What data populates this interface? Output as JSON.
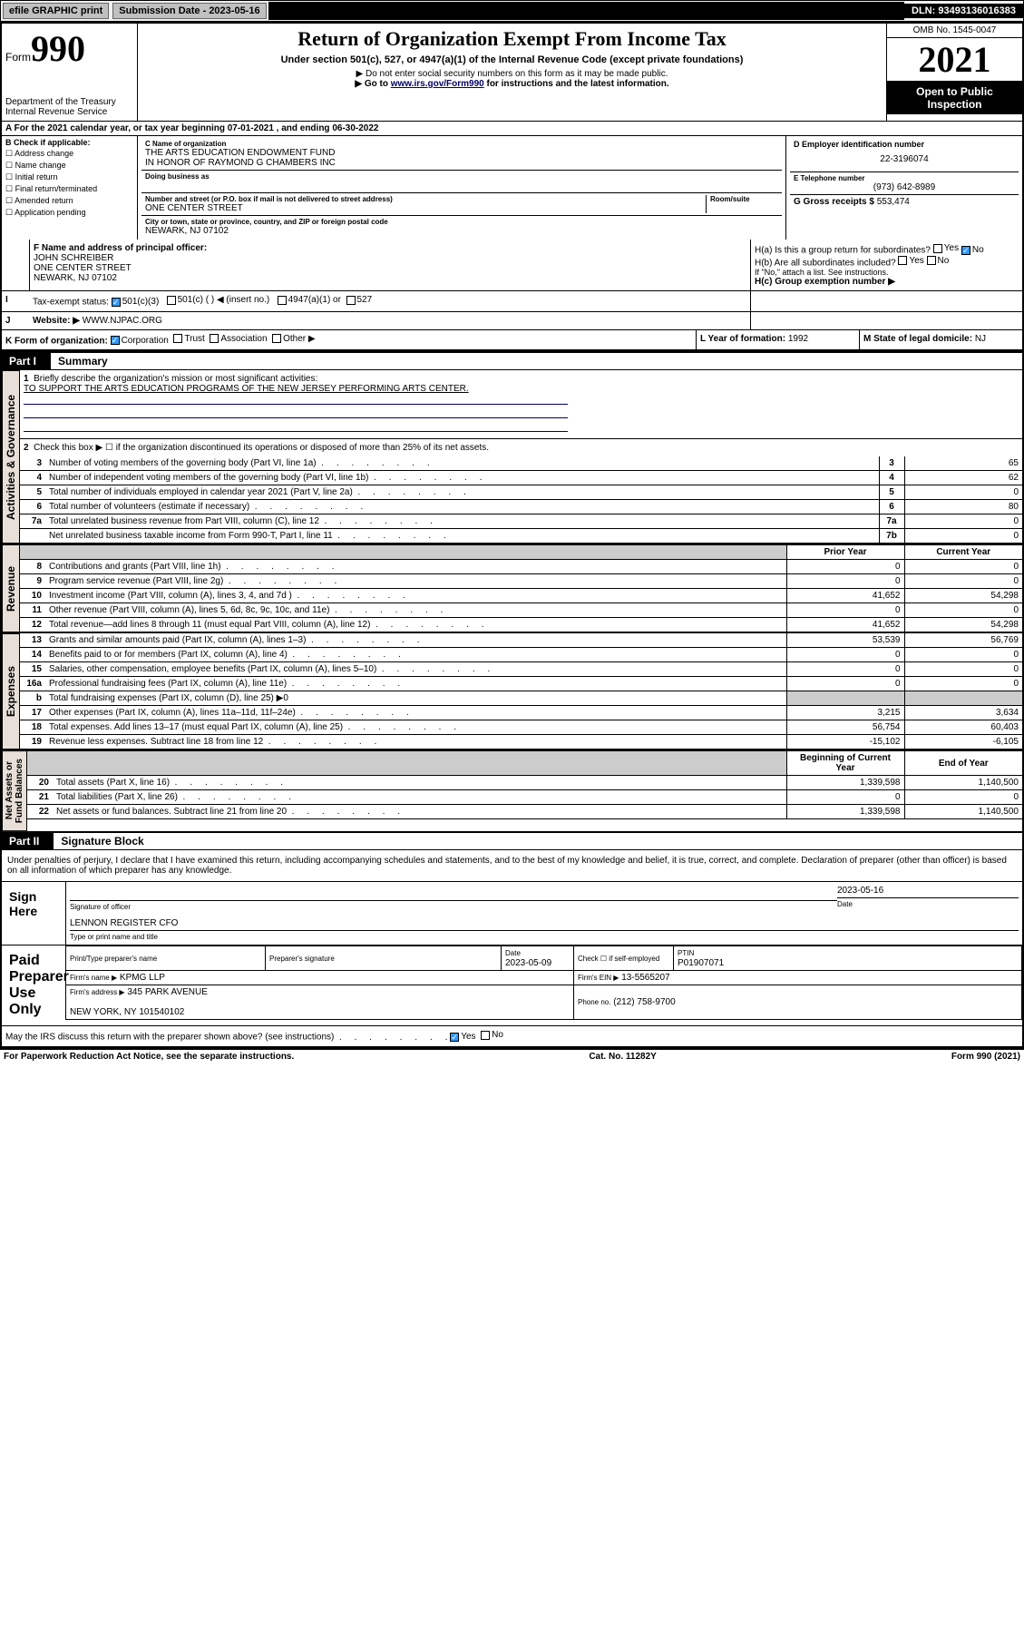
{
  "topbar": {
    "efile": "efile GRAPHIC print",
    "sub_label": "Submission Date - 2023-05-16",
    "dln": "DLN: 93493136016383"
  },
  "header": {
    "form_word": "Form",
    "form_num": "990",
    "dept": "Department of the Treasury\nInternal Revenue Service",
    "title": "Return of Organization Exempt From Income Tax",
    "subtitle": "Under section 501(c), 527, or 4947(a)(1) of the Internal Revenue Code (except private foundations)",
    "note1": "▶ Do not enter social security numbers on this form as it may be made public.",
    "note2_pre": "▶ Go to ",
    "note2_link": "www.irs.gov/Form990",
    "note2_post": " for instructions and the latest information.",
    "omb": "OMB No. 1545-0047",
    "year": "2021",
    "inspect": "Open to Public Inspection"
  },
  "period": {
    "a": "A For the 2021 calendar year, or tax year beginning 07-01-2021   , and ending 06-30-2022"
  },
  "boxB": {
    "label": "B Check if applicable:",
    "items": [
      "Address change",
      "Name change",
      "Initial return",
      "Final return/terminated",
      "Amended return",
      "Application pending"
    ]
  },
  "boxC": {
    "name_lbl": "C Name of organization",
    "name": "THE ARTS EDUCATION ENDOWMENT FUND\nIN HONOR OF RAYMOND G CHAMBERS INC",
    "dba_lbl": "Doing business as",
    "addr_lbl": "Number and street (or P.O. box if mail is not delivered to street address)",
    "room_lbl": "Room/suite",
    "addr": "ONE CENTER STREET",
    "city_lbl": "City or town, state or province, country, and ZIP or foreign postal code",
    "city": "NEWARK, NJ  07102"
  },
  "boxD": {
    "lbl": "D Employer identification number",
    "val": "22-3196074"
  },
  "boxE": {
    "lbl": "E Telephone number",
    "val": "(973) 642-8989"
  },
  "boxG": {
    "lbl": "G Gross receipts $",
    "val": "553,474"
  },
  "boxF": {
    "lbl": "F Name and address of principal officer:",
    "name": "JOHN SCHREIBER",
    "addr": "ONE CENTER STREET\nNEWARK, NJ  07102"
  },
  "boxH": {
    "a": "H(a)  Is this a group return for subordinates?",
    "b": "H(b)  Are all subordinates included?",
    "b_note": "If \"No,\" attach a list. See instructions.",
    "c": "H(c)  Group exemption number ▶"
  },
  "boxI": {
    "lbl": "Tax-exempt status:",
    "opts": [
      "501(c)(3)",
      "501(c) (  ) ◀ (insert no.)",
      "4947(a)(1) or",
      "527"
    ]
  },
  "boxJ": {
    "lbl": "Website: ▶",
    "val": "WWW.NJPAC.ORG"
  },
  "boxK": {
    "lbl": "K Form of organization:",
    "opts": [
      "Corporation",
      "Trust",
      "Association",
      "Other ▶"
    ]
  },
  "boxL": {
    "lbl": "L Year of formation:",
    "val": "1992"
  },
  "boxM": {
    "lbl": "M State of legal domicile:",
    "val": "NJ"
  },
  "part1": {
    "hdr": "Part I",
    "title": "Summary",
    "l1_lbl": "Briefly describe the organization's mission or most significant activities:",
    "l1_val": "TO SUPPORT THE ARTS EDUCATION PROGRAMS OF THE NEW JERSEY PERFORMING ARTS CENTER.",
    "l2": "Check this box ▶ ☐  if the organization discontinued its operations or disposed of more than 25% of its net assets.",
    "rows_gov": [
      {
        "n": "3",
        "t": "Number of voting members of the governing body (Part VI, line 1a)",
        "c": "3",
        "v": "65"
      },
      {
        "n": "4",
        "t": "Number of independent voting members of the governing body (Part VI, line 1b)",
        "c": "4",
        "v": "62"
      },
      {
        "n": "5",
        "t": "Total number of individuals employed in calendar year 2021 (Part V, line 2a)",
        "c": "5",
        "v": "0"
      },
      {
        "n": "6",
        "t": "Total number of volunteers (estimate if necessary)",
        "c": "6",
        "v": "80"
      },
      {
        "n": "7a",
        "t": "Total unrelated business revenue from Part VIII, column (C), line 12",
        "c": "7a",
        "v": "0"
      },
      {
        "n": "",
        "t": "Net unrelated business taxable income from Form 990-T, Part I, line 11",
        "c": "7b",
        "v": "0"
      }
    ],
    "col_prior": "Prior Year",
    "col_curr": "Current Year",
    "rows_rev": [
      {
        "n": "8",
        "t": "Contributions and grants (Part VIII, line 1h)",
        "p": "0",
        "c": "0"
      },
      {
        "n": "9",
        "t": "Program service revenue (Part VIII, line 2g)",
        "p": "0",
        "c": "0"
      },
      {
        "n": "10",
        "t": "Investment income (Part VIII, column (A), lines 3, 4, and 7d )",
        "p": "41,652",
        "c": "54,298"
      },
      {
        "n": "11",
        "t": "Other revenue (Part VIII, column (A), lines 5, 6d, 8c, 9c, 10c, and 11e)",
        "p": "0",
        "c": "0"
      },
      {
        "n": "12",
        "t": "Total revenue—add lines 8 through 11 (must equal Part VIII, column (A), line 12)",
        "p": "41,652",
        "c": "54,298"
      }
    ],
    "rows_exp": [
      {
        "n": "13",
        "t": "Grants and similar amounts paid (Part IX, column (A), lines 1–3)",
        "p": "53,539",
        "c": "56,769"
      },
      {
        "n": "14",
        "t": "Benefits paid to or for members (Part IX, column (A), line 4)",
        "p": "0",
        "c": "0"
      },
      {
        "n": "15",
        "t": "Salaries, other compensation, employee benefits (Part IX, column (A), lines 5–10)",
        "p": "0",
        "c": "0"
      },
      {
        "n": "16a",
        "t": "Professional fundraising fees (Part IX, column (A), line 11e)",
        "p": "0",
        "c": "0"
      },
      {
        "n": "b",
        "t": "Total fundraising expenses (Part IX, column (D), line 25) ▶0",
        "p": "",
        "c": "",
        "grey": true
      },
      {
        "n": "17",
        "t": "Other expenses (Part IX, column (A), lines 11a–11d, 11f–24e)",
        "p": "3,215",
        "c": "3,634"
      },
      {
        "n": "18",
        "t": "Total expenses. Add lines 13–17 (must equal Part IX, column (A), line 25)",
        "p": "56,754",
        "c": "60,403"
      },
      {
        "n": "19",
        "t": "Revenue less expenses. Subtract line 18 from line 12",
        "p": "-15,102",
        "c": "-6,105"
      }
    ],
    "col_begin": "Beginning of Current Year",
    "col_end": "End of Year",
    "rows_net": [
      {
        "n": "20",
        "t": "Total assets (Part X, line 16)",
        "p": "1,339,598",
        "c": "1,140,500"
      },
      {
        "n": "21",
        "t": "Total liabilities (Part X, line 26)",
        "p": "0",
        "c": "0"
      },
      {
        "n": "22",
        "t": "Net assets or fund balances. Subtract line 21 from line 20",
        "p": "1,339,598",
        "c": "1,140,500"
      }
    ],
    "vlabels": {
      "gov": "Activities & Governance",
      "rev": "Revenue",
      "exp": "Expenses",
      "net": "Net Assets or\nFund Balances"
    }
  },
  "part2": {
    "hdr": "Part II",
    "title": "Signature Block",
    "decl": "Under penalties of perjury, I declare that I have examined this return, including accompanying schedules and statements, and to the best of my knowledge and belief, it is true, correct, and complete. Declaration of preparer (other than officer) is based on all information of which preparer has any knowledge.",
    "sign_here": "Sign Here",
    "sig_officer_lbl": "Signature of officer",
    "sig_date": "2023-05-16",
    "date_lbl": "Date",
    "officer_name": "LENNON REGISTER CFO",
    "officer_name_lbl": "Type or print name and title",
    "paid": "Paid Preparer Use Only",
    "prep_name_lbl": "Print/Type preparer's name",
    "prep_sig_lbl": "Preparer's signature",
    "prep_date_lbl": "Date",
    "prep_date": "2023-05-09",
    "self_emp": "Check ☐ if self-employed",
    "ptin_lbl": "PTIN",
    "ptin": "P01907071",
    "firm_name_lbl": "Firm's name    ▶",
    "firm_name": "KPMG LLP",
    "firm_ein_lbl": "Firm's EIN ▶",
    "firm_ein": "13-5565207",
    "firm_addr_lbl": "Firm's address ▶",
    "firm_addr": "345 PARK AVENUE\n\nNEW YORK, NY  101540102",
    "firm_phone_lbl": "Phone no.",
    "firm_phone": "(212) 758-9700",
    "discuss": "May the IRS discuss this return with the preparer shown above? (see instructions)",
    "yes": "Yes",
    "no": "No"
  },
  "footer": {
    "left": "For Paperwork Reduction Act Notice, see the separate instructions.",
    "mid": "Cat. No. 11282Y",
    "right": "Form 990 (2021)"
  }
}
